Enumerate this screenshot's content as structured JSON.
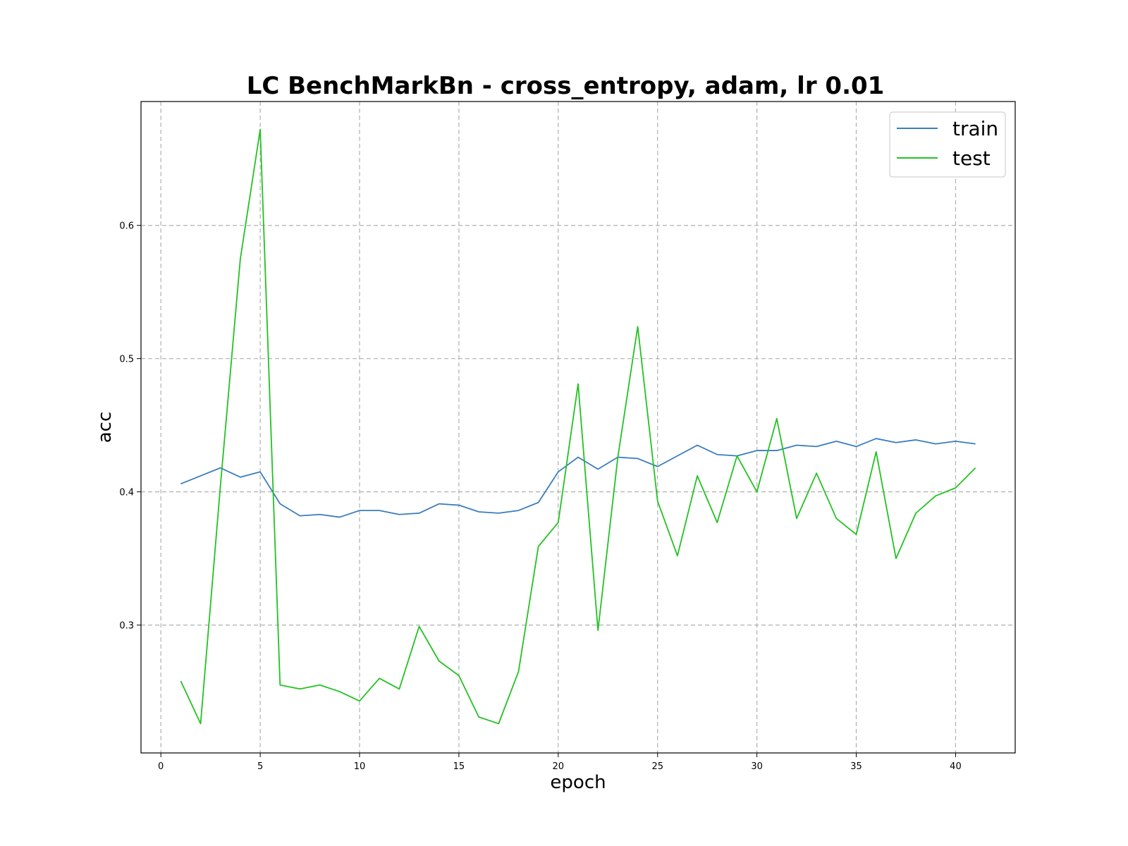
{
  "chart_data": {
    "type": "line",
    "title": "LC BenchMarkBn - cross_entropy, adam, lr 0.01",
    "xlabel": "epoch",
    "ylabel": "acc",
    "xlim": [
      -1,
      43
    ],
    "ylim": [
      0.204,
      0.693
    ],
    "xticks": [
      0,
      5,
      10,
      15,
      20,
      25,
      30,
      35,
      40
    ],
    "yticks": [
      0.3,
      0.4,
      0.5,
      0.6
    ],
    "grid": true,
    "legend_position": "top-right",
    "x": [
      1,
      2,
      3,
      4,
      5,
      6,
      7,
      8,
      9,
      10,
      11,
      12,
      13,
      14,
      15,
      16,
      17,
      18,
      19,
      20,
      21,
      22,
      23,
      24,
      25,
      26,
      27,
      28,
      29,
      30,
      31,
      32,
      33,
      34,
      35,
      36,
      37,
      38,
      39,
      40,
      41
    ],
    "series": [
      {
        "name": "train",
        "color": "#3a7dbf",
        "values": [
          0.406,
          0.412,
          0.418,
          0.411,
          0.415,
          0.391,
          0.382,
          0.383,
          0.381,
          0.386,
          0.386,
          0.383,
          0.384,
          0.391,
          0.39,
          0.385,
          0.384,
          0.386,
          0.392,
          0.415,
          0.426,
          0.417,
          0.426,
          0.425,
          0.419,
          0.427,
          0.435,
          0.428,
          0.427,
          0.431,
          0.431,
          0.435,
          0.434,
          0.438,
          0.434,
          0.44,
          0.437,
          0.439,
          0.436,
          0.438,
          0.436
        ]
      },
      {
        "name": "test",
        "color": "#22c222",
        "values": [
          0.258,
          0.226,
          0.405,
          0.575,
          0.672,
          0.255,
          0.252,
          0.255,
          0.25,
          0.243,
          0.26,
          0.252,
          0.299,
          0.273,
          0.262,
          0.231,
          0.226,
          0.265,
          0.359,
          0.377,
          0.481,
          0.296,
          0.426,
          0.524,
          0.393,
          0.352,
          0.412,
          0.377,
          0.427,
          0.4,
          0.455,
          0.38,
          0.414,
          0.38,
          0.368,
          0.43,
          0.35,
          0.384,
          0.397,
          0.403,
          0.418
        ]
      }
    ]
  }
}
